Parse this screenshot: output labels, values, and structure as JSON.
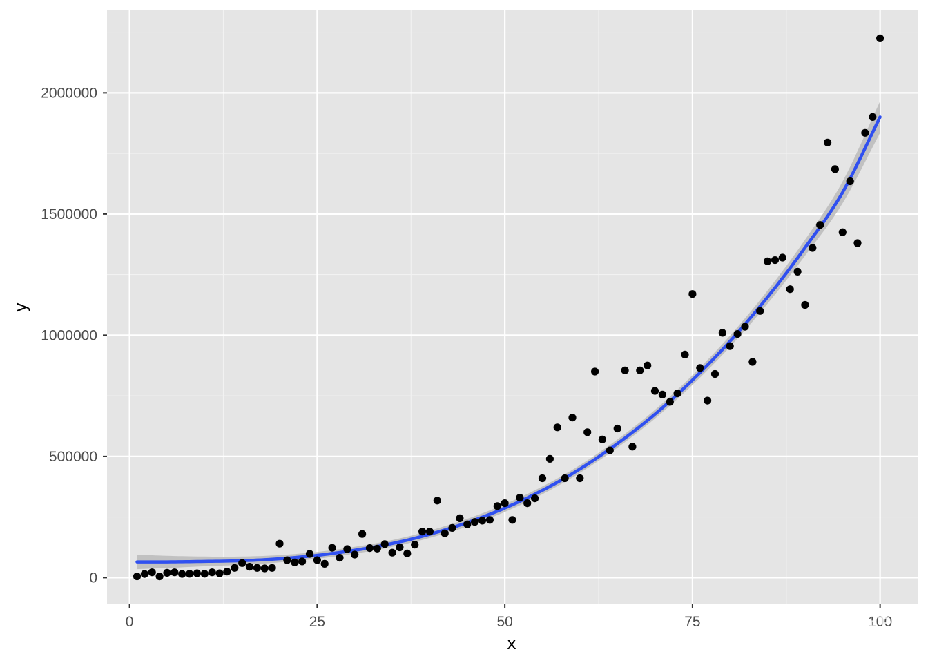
{
  "chart_data": {
    "type": "scatter",
    "title": "",
    "xlabel": "x",
    "ylabel": "y",
    "xlim": [
      -3,
      105
    ],
    "ylim": [
      -110000,
      2340000
    ],
    "xticks": [
      0,
      25,
      50,
      75,
      100
    ],
    "xtick_labels": [
      "0",
      "25",
      "50",
      "75",
      "100"
    ],
    "yticks": [
      0,
      500000,
      1000000,
      1500000,
      2000000
    ],
    "ytick_labels": [
      "0",
      "500000",
      "1000000",
      "1500000",
      "2000000"
    ],
    "grid": true,
    "background_color": "#e5e5e5",
    "point_color": "#000000",
    "fit_color": "#3050f0",
    "band_color": "#bdbdbd",
    "points": {
      "x": [
        1,
        2,
        3,
        4,
        5,
        6,
        7,
        8,
        9,
        10,
        11,
        12,
        13,
        14,
        15,
        16,
        17,
        18,
        19,
        20,
        21,
        22,
        23,
        24,
        25,
        26,
        27,
        28,
        29,
        30,
        31,
        32,
        33,
        34,
        35,
        36,
        37,
        38,
        39,
        40,
        41,
        42,
        43,
        44,
        45,
        46,
        47,
        48,
        49,
        50,
        51,
        52,
        53,
        54,
        55,
        56,
        57,
        58,
        59,
        60,
        61,
        62,
        63,
        64,
        65,
        66,
        67,
        68,
        69,
        70,
        71,
        72,
        73,
        74,
        75,
        76,
        77,
        78,
        79,
        80,
        81,
        82,
        83,
        84,
        85,
        86,
        87,
        88,
        89,
        90,
        91,
        92,
        93,
        94,
        95,
        96,
        97,
        98,
        99,
        100
      ],
      "y": [
        5000,
        15000,
        22000,
        5000,
        20000,
        22000,
        15000,
        16000,
        18000,
        16000,
        22000,
        18000,
        25000,
        40000,
        60000,
        45000,
        40000,
        38000,
        40000,
        140000,
        72000,
        63000,
        67000,
        98000,
        72000,
        57000,
        123000,
        82000,
        118000,
        95000,
        180000,
        122000,
        120000,
        138000,
        103000,
        125000,
        100000,
        136000,
        190000,
        190000,
        318000,
        183000,
        205000,
        245000,
        220000,
        230000,
        235000,
        238000,
        295000,
        307000,
        238000,
        330000,
        307000,
        327000,
        410000,
        490000,
        620000,
        410000,
        660000,
        410000,
        600000,
        850000,
        570000,
        525000,
        615000,
        855000,
        540000,
        855000,
        875000,
        770000,
        755000,
        725000,
        760000,
        920000,
        1170000,
        865000,
        730000,
        840000,
        1010000,
        955000,
        1005000,
        1035000,
        890000,
        1100000,
        1305000,
        1310000,
        1320000,
        1190000,
        1262000,
        1125000,
        1360000,
        1455000,
        1795000,
        1685000,
        1425000,
        1635000,
        1380000,
        1835000,
        1900000,
        2225000
      ]
    },
    "fit": {
      "method": "polynomial",
      "x": [
        1,
        5,
        10,
        15,
        20,
        25,
        30,
        35,
        40,
        45,
        50,
        55,
        60,
        65,
        70,
        75,
        80,
        85,
        90,
        95,
        100
      ],
      "y": [
        65000,
        65000,
        67000,
        70000,
        78000,
        92000,
        113000,
        141000,
        179000,
        227000,
        287000,
        360000,
        448000,
        553000,
        674000,
        815000,
        975000,
        1157000,
        1361000,
        1589000,
        1900000
      ],
      "band_halfwidth": [
        30000,
        25000,
        20000,
        17000,
        15000,
        14000,
        14000,
        14000,
        15000,
        16000,
        16000,
        16000,
        16000,
        17000,
        18000,
        20000,
        23000,
        27000,
        33000,
        45000,
        65000
      ]
    }
  },
  "watermark": "知乎 @王诗翔"
}
